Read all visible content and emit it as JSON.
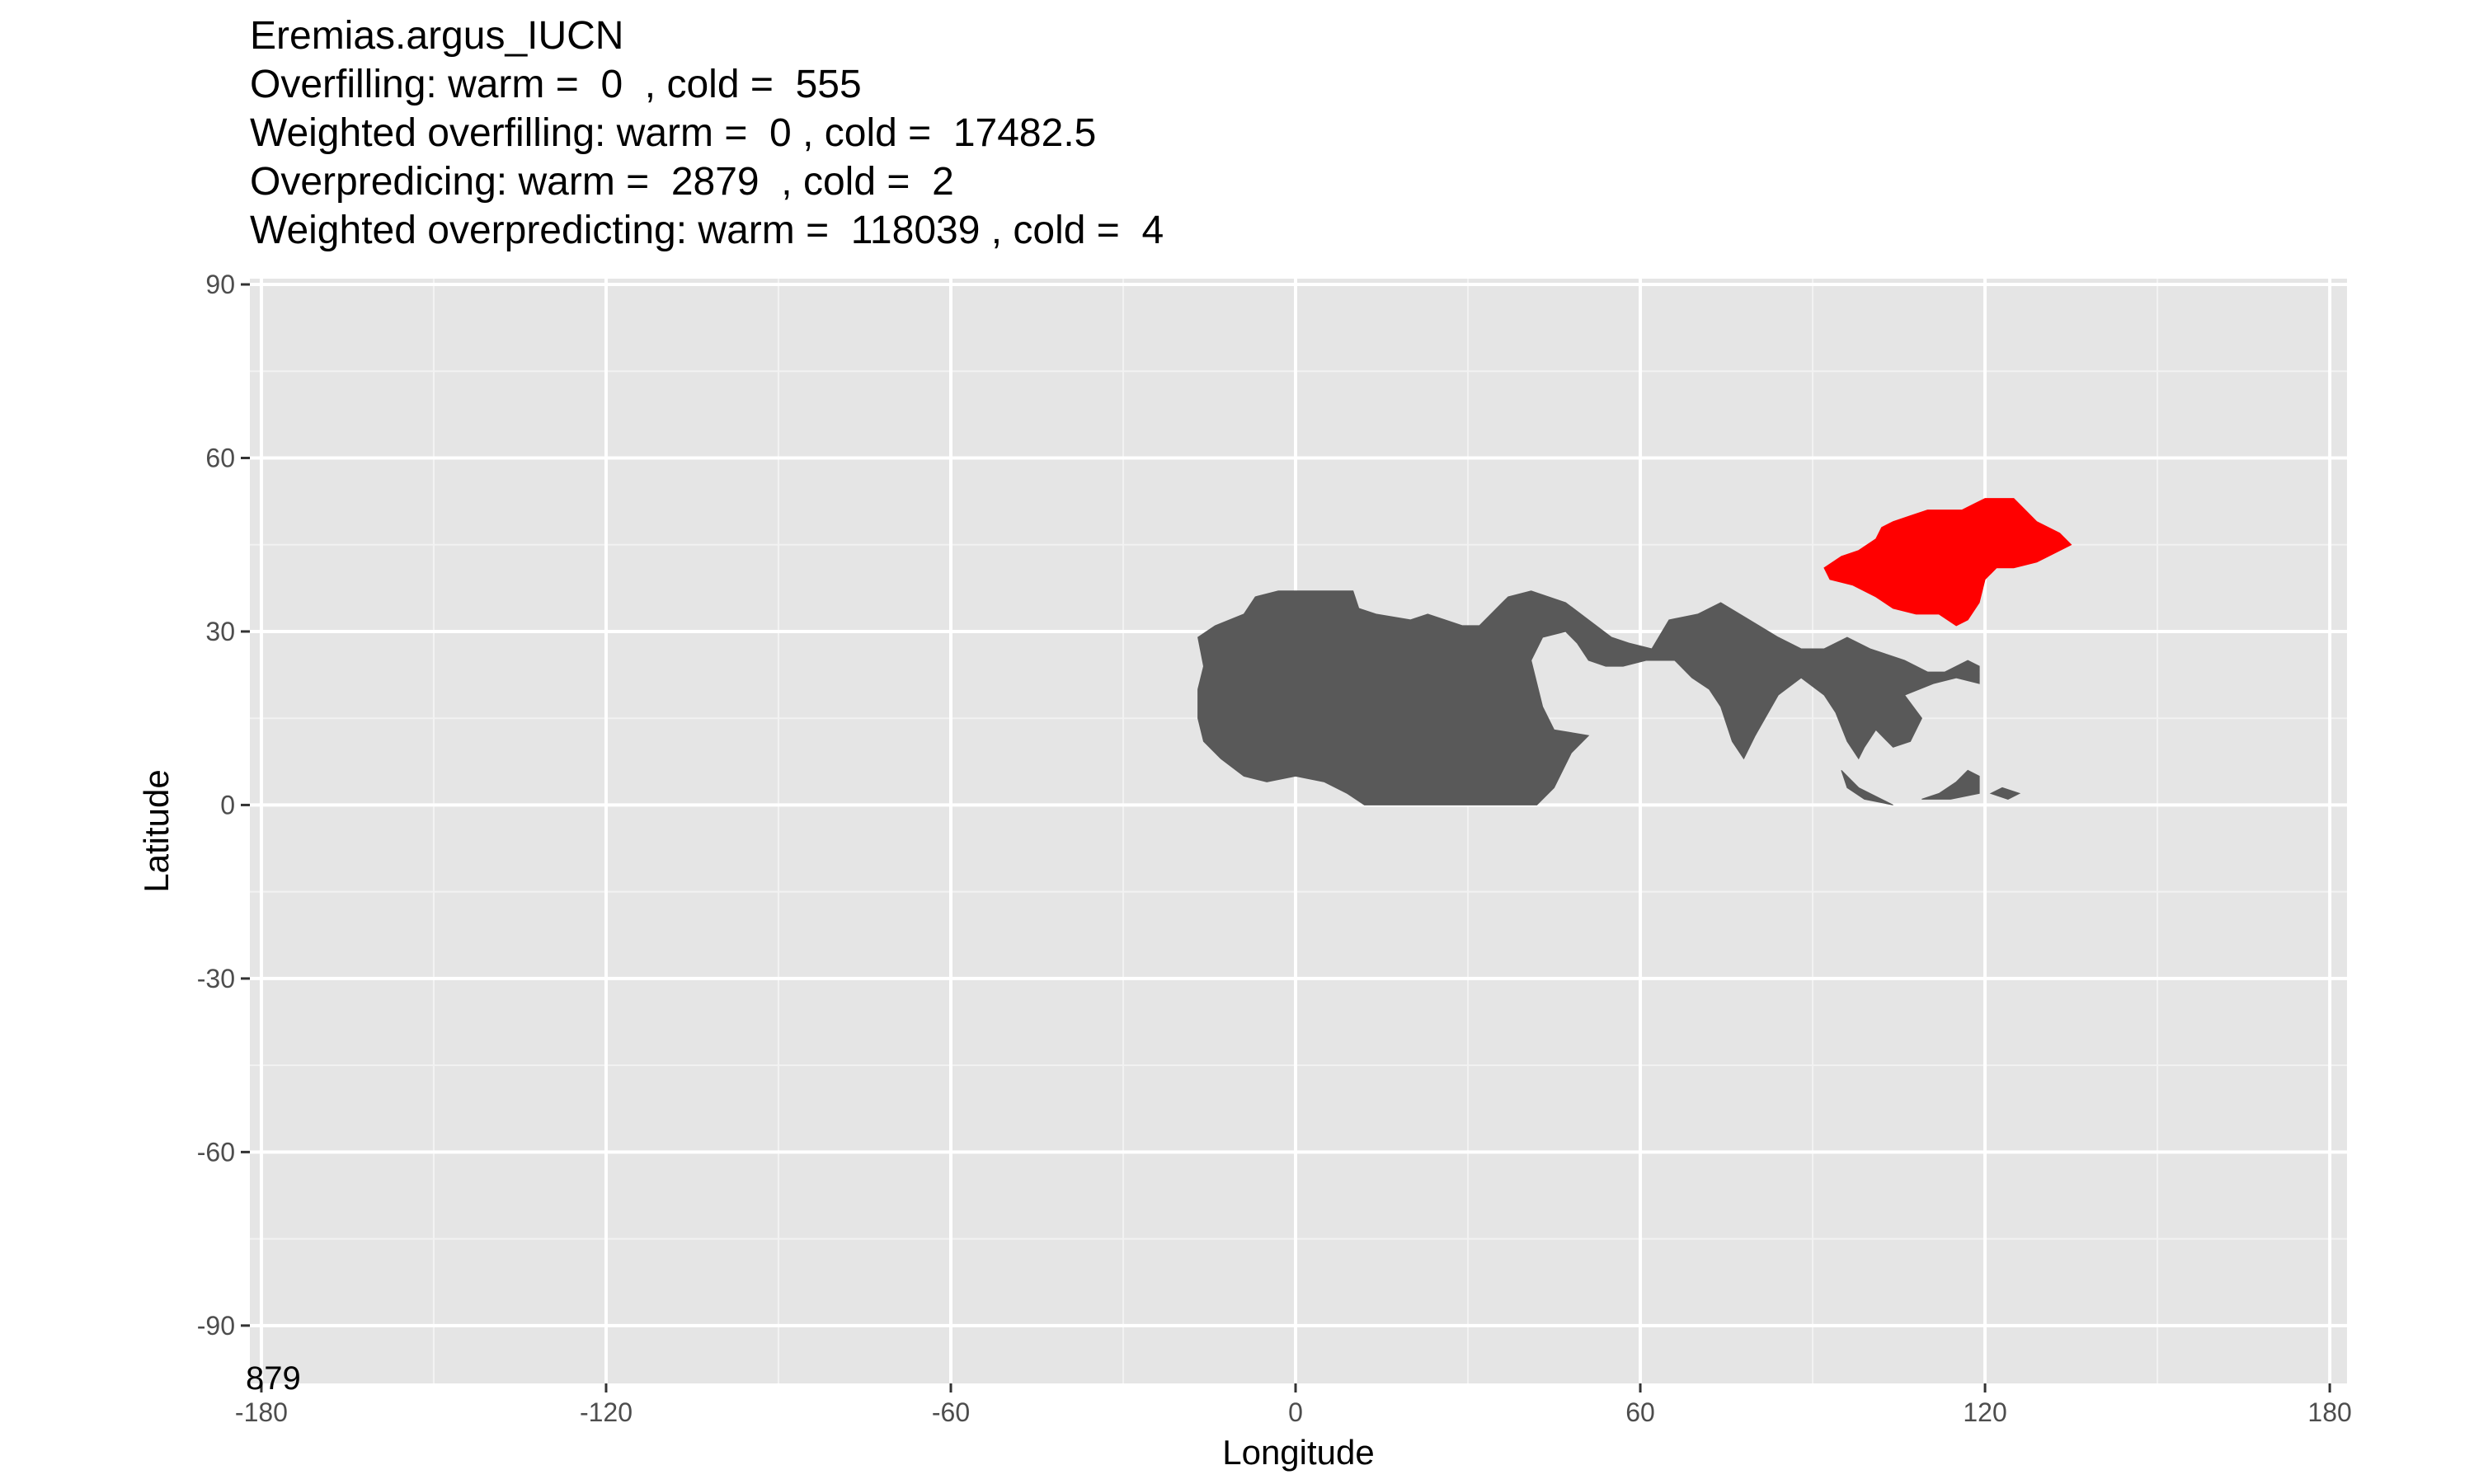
{
  "chart_data": {
    "type": "heatmap",
    "title": "Eremias.argus_IUCN",
    "subtitle_lines": [
      "Overfilling: warm =  0  , cold =  555",
      "Weighted overfilling: warm =  0 , cold =  17482.5",
      "Overpredicing: warm =  2879  , cold =  2",
      "Weighted overpredicting: warm =  118039 , cold =  4"
    ],
    "xlabel": "Longitude",
    "ylabel": "Latitude",
    "xlim": [
      -182,
      183
    ],
    "ylim": [
      -100,
      91
    ],
    "x_ticks": [
      -180,
      -120,
      -60,
      0,
      60,
      120,
      180
    ],
    "x_tick_labels": [
      "-180",
      "-120",
      "-60",
      "0",
      "60",
      "120",
      "180"
    ],
    "y_ticks": [
      -90,
      -60,
      -30,
      0,
      30,
      60,
      90
    ],
    "y_tick_labels": [
      "-90",
      "-60",
      "-30",
      "0",
      "30",
      "60",
      "90"
    ],
    "grid": true,
    "panel_background": "#e5e5e5",
    "corner_label": "879",
    "regions": [
      {
        "category": "overpredicted",
        "color": "#595959",
        "polygons": [
          [
            [
              -17,
              29
            ],
            [
              -14,
              31
            ],
            [
              -9,
              33
            ],
            [
              -7,
              36
            ],
            [
              -3,
              37
            ],
            [
              2,
              37
            ],
            [
              7,
              37
            ],
            [
              10,
              37
            ],
            [
              11,
              34
            ],
            [
              14,
              33
            ],
            [
              20,
              32
            ],
            [
              23,
              33
            ],
            [
              26,
              32
            ],
            [
              29,
              31
            ],
            [
              32,
              31
            ],
            [
              34,
              33
            ],
            [
              36,
              35
            ],
            [
              37,
              36
            ],
            [
              41,
              37
            ],
            [
              47,
              35
            ],
            [
              51,
              32
            ],
            [
              55,
              29
            ],
            [
              58,
              28
            ],
            [
              62,
              27
            ],
            [
              65,
              32
            ],
            [
              70,
              33
            ],
            [
              74,
              35
            ],
            [
              79,
              32
            ],
            [
              84,
              29
            ],
            [
              88,
              27
            ],
            [
              92,
              27
            ],
            [
              96,
              29
            ],
            [
              100,
              27
            ],
            [
              103,
              26
            ],
            [
              106,
              25
            ],
            [
              110,
              23
            ],
            [
              113,
              23
            ],
            [
              117,
              25
            ],
            [
              119,
              24
            ],
            [
              119,
              21
            ],
            [
              115,
              22
            ],
            [
              111,
              21
            ],
            [
              106,
              19
            ],
            [
              109,
              15
            ],
            [
              107,
              11
            ],
            [
              104,
              10
            ],
            [
              101,
              13
            ],
            [
              99,
              10
            ],
            [
              98,
              8
            ],
            [
              96,
              11
            ],
            [
              94,
              16
            ],
            [
              92,
              19
            ],
            [
              88,
              22
            ],
            [
              84,
              19
            ],
            [
              80,
              12
            ],
            [
              78,
              8
            ],
            [
              76,
              11
            ],
            [
              74,
              17
            ],
            [
              72,
              20
            ],
            [
              69,
              22
            ],
            [
              66,
              25
            ],
            [
              61,
              25
            ],
            [
              57,
              24
            ],
            [
              54,
              24
            ],
            [
              51,
              25
            ],
            [
              49,
              28
            ],
            [
              47,
              30
            ],
            [
              43,
              29
            ],
            [
              41,
              25
            ],
            [
              43,
              17
            ],
            [
              45,
              13
            ],
            [
              51,
              12
            ],
            [
              48,
              9
            ],
            [
              45,
              3
            ],
            [
              42,
              0
            ],
            [
              35,
              0
            ],
            [
              28,
              0
            ],
            [
              20,
              0
            ],
            [
              12,
              0
            ],
            [
              9,
              2
            ],
            [
              5,
              4
            ],
            [
              0,
              5
            ],
            [
              -5,
              4
            ],
            [
              -9,
              5
            ],
            [
              -13,
              8
            ],
            [
              -16,
              11
            ],
            [
              -17,
              15
            ],
            [
              -17,
              20
            ],
            [
              -16,
              24
            ]
          ],
          [
            [
              95,
              6
            ],
            [
              98,
              3
            ],
            [
              102,
              1
            ],
            [
              104,
              0
            ],
            [
              99,
              1
            ],
            [
              96,
              3
            ]
          ],
          [
            [
              109,
              1
            ],
            [
              112,
              2
            ],
            [
              115,
              4
            ],
            [
              117,
              6
            ],
            [
              119,
              5
            ],
            [
              119,
              2
            ],
            [
              114,
              1
            ]
          ],
          [
            [
              121,
              2
            ],
            [
              124,
              1
            ],
            [
              126,
              2
            ],
            [
              123,
              3
            ]
          ]
        ]
      },
      {
        "category": "overfilled",
        "color": "#ff0000",
        "polygons": [
          [
            [
              92,
              41
            ],
            [
              95,
              43
            ],
            [
              98,
              44
            ],
            [
              101,
              46
            ],
            [
              102,
              48
            ],
            [
              104,
              49
            ],
            [
              107,
              50
            ],
            [
              110,
              51
            ],
            [
              113,
              51
            ],
            [
              116,
              51
            ],
            [
              118,
              52
            ],
            [
              120,
              53
            ],
            [
              122,
              53
            ],
            [
              125,
              53
            ],
            [
              127,
              51
            ],
            [
              129,
              49
            ],
            [
              133,
              47
            ],
            [
              135,
              45
            ],
            [
              131,
              43
            ],
            [
              129,
              42
            ],
            [
              125,
              41
            ],
            [
              122,
              41
            ],
            [
              120,
              39
            ],
            [
              119,
              35
            ],
            [
              117,
              32
            ],
            [
              115,
              31
            ],
            [
              112,
              33
            ],
            [
              108,
              33
            ],
            [
              104,
              34
            ],
            [
              101,
              36
            ],
            [
              97,
              38
            ],
            [
              93,
              39
            ]
          ]
        ]
      }
    ]
  }
}
